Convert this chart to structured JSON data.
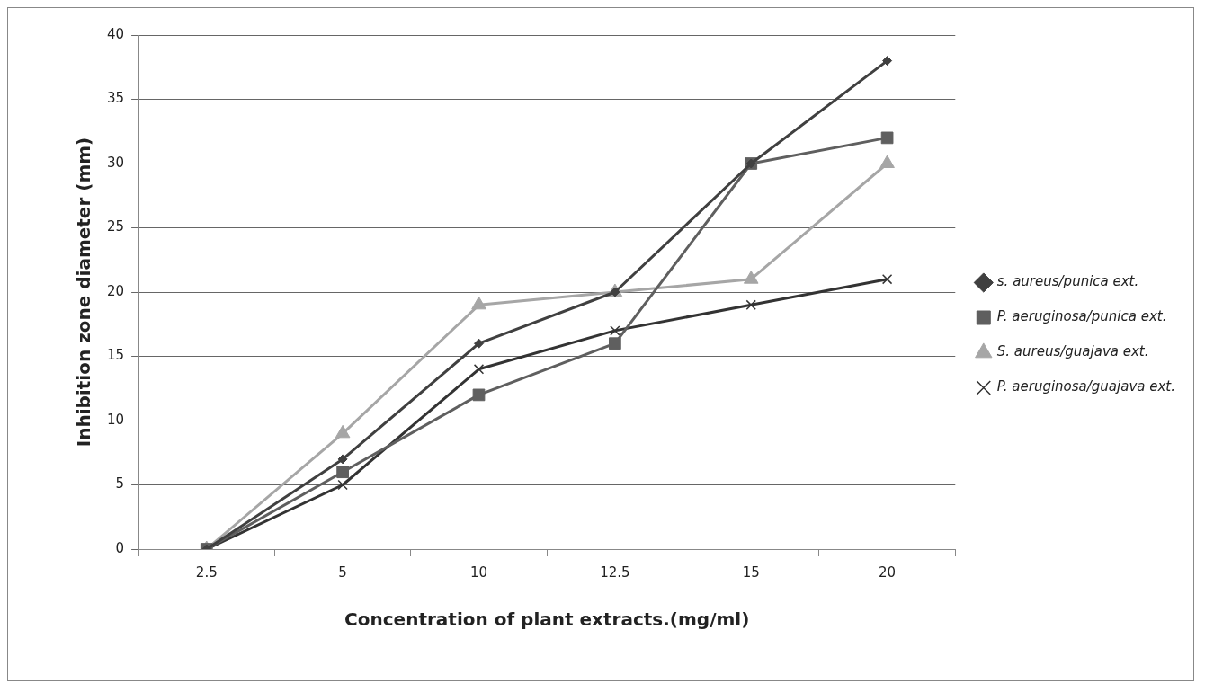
{
  "chart_data": {
    "type": "line",
    "xlabel": "Concentration of plant extracts.(mg/ml)",
    "ylabel": "Inhibition zone diameter (mm)",
    "categories": [
      "2.5",
      "5",
      "10",
      "12.5",
      "15",
      "20"
    ],
    "ylim": [
      0,
      40
    ],
    "yticks": [
      0,
      5,
      10,
      15,
      20,
      25,
      30,
      35,
      40
    ],
    "grid": "y",
    "legend": "right",
    "line_style": "solid",
    "series": [
      {
        "name": "s. aureus/punica ext.",
        "color": "#404040",
        "marker": "diamond",
        "values": [
          0,
          7,
          16,
          20,
          30,
          38
        ]
      },
      {
        "name": "P. aeruginosa/punica ext.",
        "color": "#5f5f5f",
        "marker": "square",
        "values": [
          0,
          6,
          12,
          16,
          30,
          32
        ]
      },
      {
        "name": "S. aureus/guajava ext.",
        "color": "#a6a6a6",
        "marker": "triangle",
        "values": [
          0,
          9,
          19,
          20,
          21,
          30
        ]
      },
      {
        "name": "P. aeruginosa/guajava ext.",
        "color": "#333333",
        "marker": "cross",
        "values": [
          0,
          5,
          14,
          17,
          19,
          21
        ]
      }
    ]
  }
}
